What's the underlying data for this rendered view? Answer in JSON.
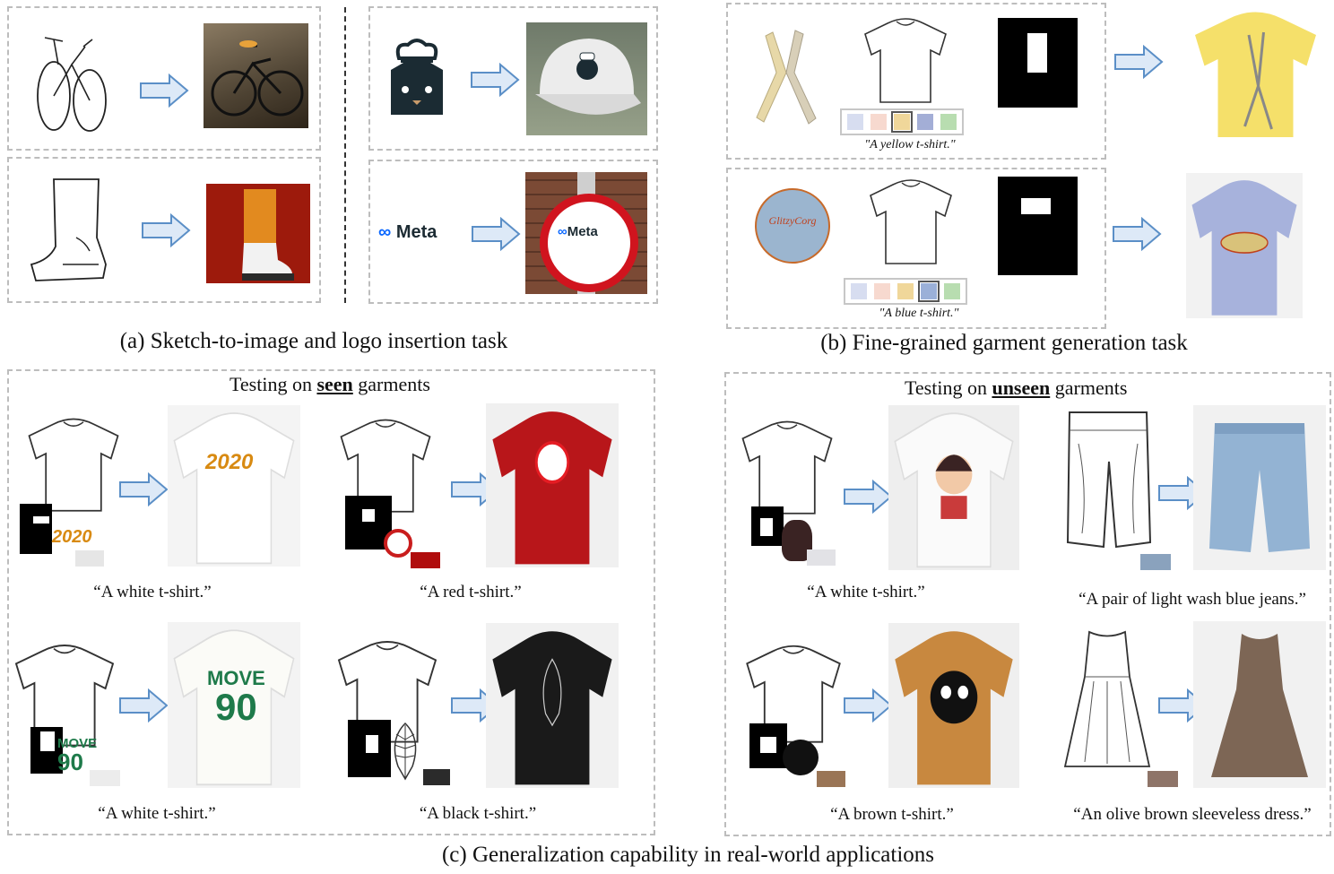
{
  "section_a": {
    "caption": "(a) Sketch-to-image and logo insertion task",
    "meta_logo_text": "Meta",
    "meta_sign_text": "Meta"
  },
  "section_b": {
    "caption": "(b) Fine-grained garment generation task",
    "row1_prompt": "\"A yellow t-shirt.\"",
    "row2_prompt": "\"A blue t-shirt.\"",
    "row2_logo_text": "GlitzyCorg",
    "row1_swatches": [
      "#d7ddf0",
      "#f7d9cf",
      "#f0d79a",
      "#a3aed6",
      "#b8ddb0"
    ],
    "row2_swatches": [
      "#d7ddf0",
      "#f7d9cf",
      "#f0d79a",
      "#9bb0d8",
      "#b8ddb0"
    ],
    "yellow_color": "#f5e06a",
    "blue_color": "#a7b2dc"
  },
  "section_c": {
    "caption": "(c) Generalization capability in real-world applications",
    "seen_heading_pre": "Testing on",
    "seen_heading_bold": "seen",
    "seen_heading_post": "garments",
    "unseen_heading_pre": "Testing on",
    "unseen_heading_bold": "unseen",
    "unseen_heading_post": "garments",
    "seen_prompts": [
      "“A white t-shirt.”",
      "“A red t-shirt.”",
      "“A white t-shirt.”",
      "“A black t-shirt.”"
    ],
    "unseen_prompts": [
      "“A white t-shirt.”",
      "“A pair of light wash blue jeans.”",
      "“A brown t-shirt.”",
      "“An olive brown sleeveless dress.”"
    ],
    "logo_2020": "2020",
    "logo_move": "MOVE",
    "logo_90": "90",
    "swatch_colors": {
      "white": "#e6e6e6",
      "red": "#b00d0d",
      "white2": "#ececec",
      "black": "#2b2b2b",
      "white3": "#e2e2e6",
      "jeans": "#8aa2bd",
      "brown": "#9a7556",
      "dress": "#8e7468"
    }
  },
  "colors": {
    "arrow_fill": "#dde9f7",
    "arrow_stroke": "#5b8fc7",
    "dash": "#bdbdbd"
  }
}
